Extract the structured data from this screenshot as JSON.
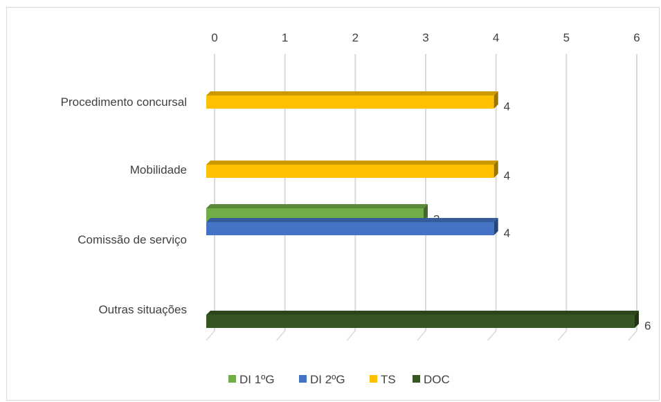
{
  "chart_data": {
    "type": "bar",
    "orientation": "horizontal",
    "style": "3d-clustered",
    "categories": [
      "Procedimento concursal",
      "Mobilidade",
      "Comissão de serviço",
      "Outras situações"
    ],
    "series": [
      {
        "name": "DI 1ºG",
        "color": "#70ad47",
        "values": [
          null,
          null,
          3,
          null
        ]
      },
      {
        "name": "DI 2ºG",
        "color": "#4472c4",
        "values": [
          null,
          null,
          4,
          null
        ]
      },
      {
        "name": "TS",
        "color": "#ffc000",
        "values": [
          4,
          4,
          null,
          null
        ]
      },
      {
        "name": "DOC",
        "color": "#375623",
        "values": [
          null,
          null,
          null,
          6
        ]
      }
    ],
    "xlim": [
      0,
      6
    ],
    "x_ticks": [
      "0",
      "1",
      "2",
      "3",
      "4",
      "5",
      "6"
    ],
    "x_axis_position": "top",
    "grid": true,
    "legend_position": "bottom",
    "title": "",
    "xlabel": "",
    "ylabel": ""
  }
}
